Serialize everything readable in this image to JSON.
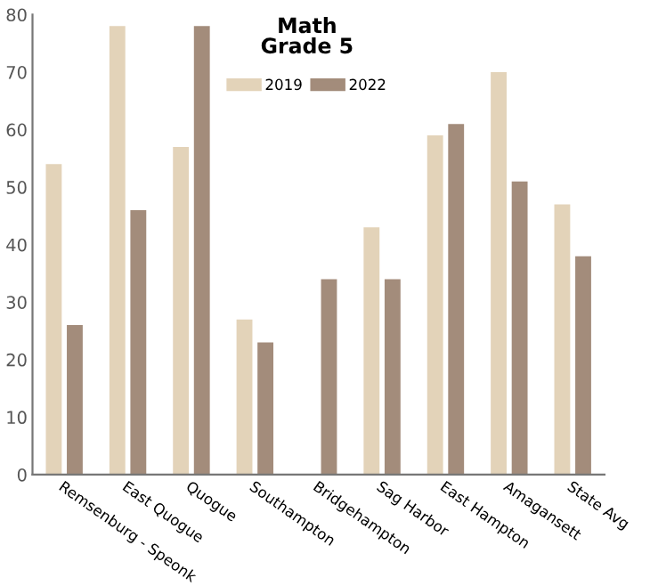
{
  "chart_data": {
    "type": "bar",
    "title": "Math\nGrade 5",
    "categories": [
      "Remsenburg - Speonk",
      "East Quogue",
      "Quogue",
      "Southampton",
      "Bridgehampton",
      "Sag Harbor",
      "East Hampton",
      "Amagansett",
      "State Avg"
    ],
    "series": [
      {
        "name": "2019",
        "color": "#e3d3b9",
        "values": [
          54,
          78,
          57,
          27,
          null,
          43,
          59,
          70,
          47
        ]
      },
      {
        "name": "2022",
        "color": "#a38c7b",
        "values": [
          26,
          46,
          78,
          23,
          34,
          34,
          61,
          51,
          38
        ]
      }
    ],
    "ylim": [
      0,
      80
    ],
    "yticks": [
      0,
      10,
      20,
      30,
      40,
      50,
      60,
      70,
      80
    ],
    "grid": false,
    "legend": "top"
  }
}
